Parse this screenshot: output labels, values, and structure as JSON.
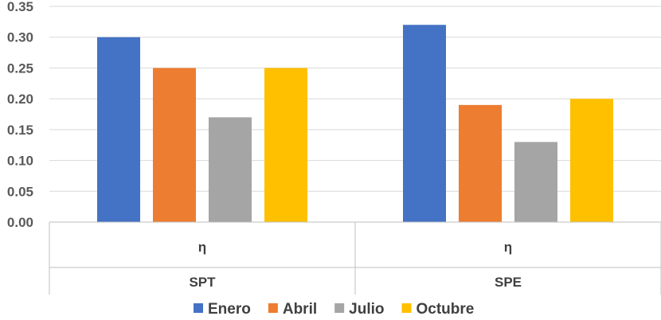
{
  "chart_data": {
    "type": "bar",
    "groups": [
      {
        "label": "SPT",
        "sublabel": "η"
      },
      {
        "label": "SPE",
        "sublabel": "η"
      }
    ],
    "categories": [
      "SPT",
      "SPE"
    ],
    "series": [
      {
        "name": "Enero",
        "color": "#4472C4",
        "values": [
          0.3,
          0.32
        ]
      },
      {
        "name": "Abril",
        "color": "#ED7D31",
        "values": [
          0.25,
          0.19
        ]
      },
      {
        "name": "Julio",
        "color": "#A5A5A5",
        "values": [
          0.17,
          0.13
        ]
      },
      {
        "name": "Octubre",
        "color": "#FFC000",
        "values": [
          0.25,
          0.2
        ]
      }
    ],
    "yticks": [
      "0.00",
      "0.05",
      "0.10",
      "0.15",
      "0.20",
      "0.25",
      "0.30",
      "0.35"
    ],
    "ylim": [
      0,
      0.35
    ],
    "grid": true,
    "legend": "bottom"
  }
}
